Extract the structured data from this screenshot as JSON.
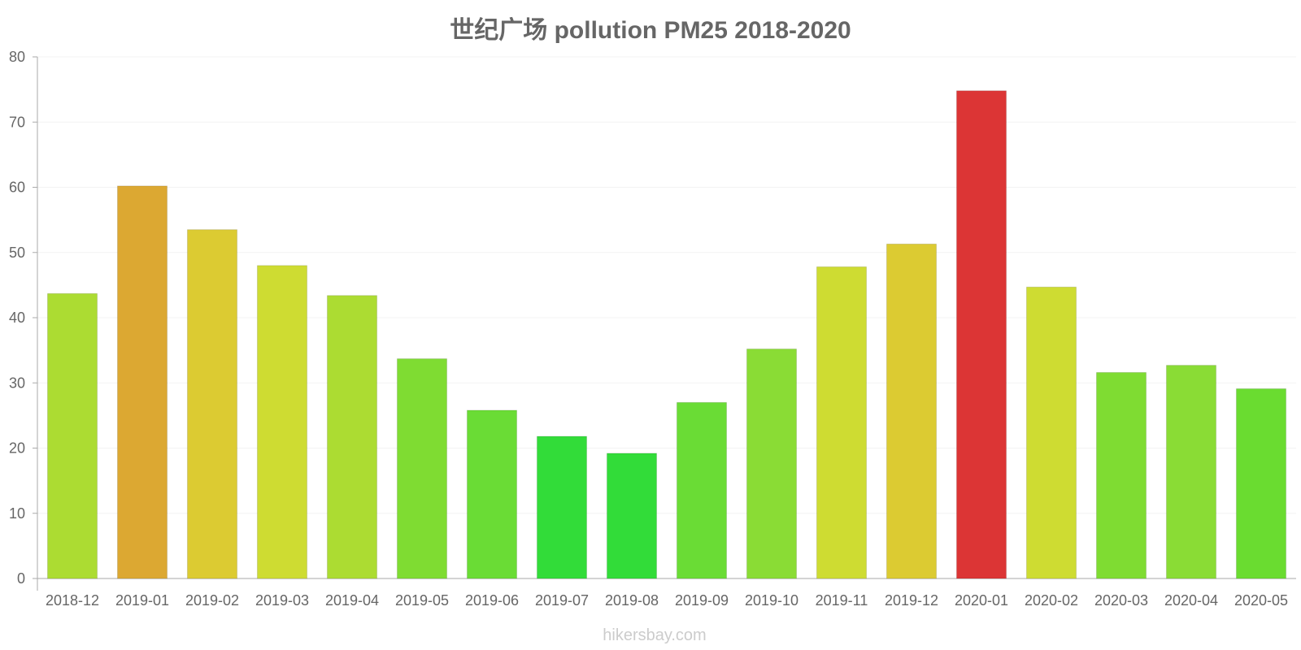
{
  "chart_data": {
    "type": "bar",
    "title": "世纪广场 pollution PM25 2018-2020",
    "xlabel": "",
    "ylabel": "",
    "ylim": [
      0,
      80
    ],
    "yticks": [
      0,
      10,
      20,
      30,
      40,
      50,
      60,
      70,
      80
    ],
    "categories": [
      "2018-12",
      "2019-01",
      "2019-02",
      "2019-03",
      "2019-04",
      "2019-05",
      "2019-06",
      "2019-07",
      "2019-08",
      "2019-09",
      "2019-10",
      "2019-11",
      "2019-12",
      "2020-01",
      "2020-02",
      "2020-03",
      "2020-04",
      "2020-05"
    ],
    "values": [
      43.7,
      60.2,
      53.5,
      48.0,
      43.4,
      33.7,
      25.8,
      21.8,
      19.2,
      27.0,
      35.2,
      47.8,
      51.3,
      74.8,
      44.7,
      31.6,
      32.7,
      29.1
    ],
    "colors": [
      "#acdc32",
      "#dca832",
      "#dccb32",
      "#cedc32",
      "#acdc32",
      "#7fdc32",
      "#6adc35",
      "#32dc39",
      "#32dc39",
      "#6adc35",
      "#8adc35",
      "#cedc32",
      "#dccb32",
      "#dc3535",
      "#cedc32",
      "#7fdc32",
      "#8adc35",
      "#6adc30"
    ],
    "grid": true
  },
  "watermark": "hikersbay.com"
}
